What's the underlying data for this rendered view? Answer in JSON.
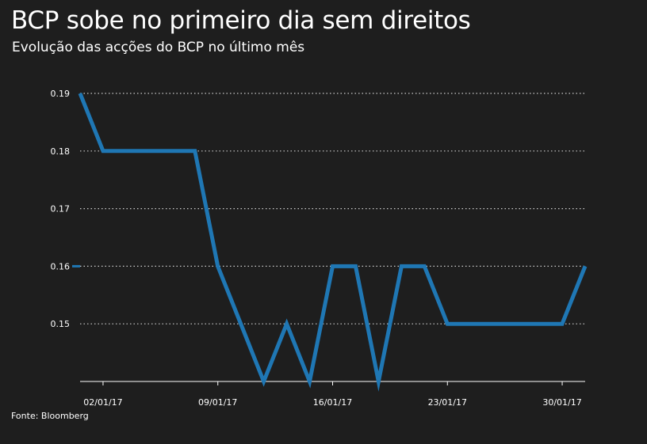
{
  "title": "BCP sobe no primeiro dia sem direitos",
  "subtitle": "Evolução das acções do BCP no último mês",
  "source": "Fonte: Bloomberg",
  "colors": {
    "background": "#1e1e1e",
    "line": "#1f77b4",
    "text": "#ffffff",
    "grid": "#cccccc"
  },
  "chart_data": {
    "type": "line",
    "title": "BCP sobe no primeiro dia sem direitos",
    "subtitle": "Evolução das acções do BCP no último mês",
    "xlabel": "",
    "ylabel": "",
    "x": [
      "30/12/16",
      "02/01/17",
      "03/01/17",
      "04/01/17",
      "05/01/17",
      "06/01/17",
      "09/01/17",
      "10/01/17",
      "11/01/17",
      "12/01/17",
      "13/01/17",
      "16/01/17",
      "17/01/17",
      "18/01/17",
      "19/01/17",
      "20/01/17",
      "23/01/17",
      "24/01/17",
      "25/01/17",
      "26/01/17",
      "27/01/17",
      "30/01/17",
      "31/01/17"
    ],
    "values": [
      0.19,
      0.18,
      0.18,
      0.18,
      0.18,
      0.18,
      0.16,
      0.15,
      0.14,
      0.15,
      0.14,
      0.16,
      0.16,
      0.14,
      0.16,
      0.16,
      0.15,
      0.15,
      0.15,
      0.15,
      0.15,
      0.15,
      0.16
    ],
    "x_tick_labels": [
      "02/01/17",
      "09/01/17",
      "16/01/17",
      "23/01/17",
      "30/01/17"
    ],
    "x_tick_index": [
      1,
      6,
      11,
      16,
      21
    ],
    "y_tick_labels": [
      "0.19",
      "0.18",
      "0.17",
      "0.16",
      "0.15"
    ],
    "y_ticks": [
      0.19,
      0.18,
      0.17,
      0.16,
      0.15
    ],
    "ylim": [
      0.14,
      0.19
    ],
    "grid": "horizontal dotted",
    "legend": "none"
  }
}
